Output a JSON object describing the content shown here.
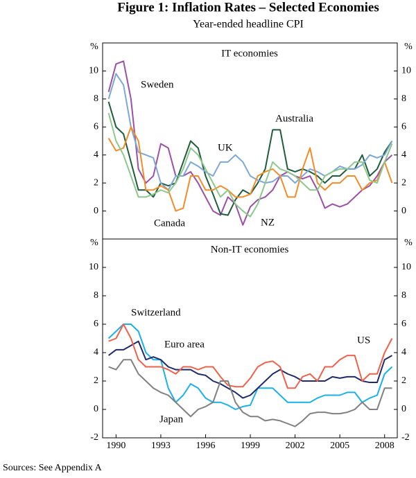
{
  "figure": {
    "title": "Figure 1: Inflation Rates – Selected Economies",
    "subtitle": "Year-ended headline CPI",
    "sources": "Sources:  See Appendix A"
  },
  "chart_data": [
    {
      "type": "line",
      "panel_title": "IT economies",
      "y_unit": "%",
      "x": [
        1989.5,
        1990,
        1990.5,
        1991,
        1991.5,
        1992,
        1992.5,
        1993,
        1993.5,
        1994,
        1994.5,
        1995,
        1995.5,
        1996,
        1996.5,
        1997,
        1997.5,
        1998,
        1998.5,
        1999,
        1999.5,
        2000,
        2000.5,
        2001,
        2001.5,
        2002,
        2002.5,
        2003,
        2003.5,
        2004,
        2004.5,
        2005,
        2005.5,
        2006,
        2006.5,
        2007,
        2007.5,
        2008,
        2008.5
      ],
      "xlim": [
        1989.1,
        2008.85
      ],
      "ylim": [
        -2,
        12
      ],
      "yticks": [
        0,
        2,
        4,
        6,
        8,
        10
      ],
      "series": [
        {
          "name": "Sweden",
          "color": "#9b4fa6",
          "values": [
            8.5,
            10.5,
            10.7,
            8,
            3,
            2,
            2.5,
            4.8,
            4.5,
            2.5,
            2.5,
            2.8,
            2,
            1,
            0,
            -0.3,
            1,
            0.5,
            -1,
            0.3,
            0.8,
            1,
            1.5,
            2.5,
            2.8,
            2.5,
            2.3,
            2.5,
            1.5,
            0.2,
            0.5,
            0.3,
            0.5,
            1,
            1.5,
            1.8,
            2.5,
            3.5,
            4
          ]
        },
        {
          "name": "Australia",
          "color": "#1e5c3a",
          "values": [
            7.8,
            6,
            5.5,
            3.5,
            1.5,
            1.5,
            1,
            2,
            1.8,
            2,
            3.5,
            5,
            4.5,
            2.5,
            1.2,
            -0.2,
            -0.3,
            0.8,
            1.5,
            1.2,
            2,
            3,
            5.8,
            5.8,
            3,
            2.8,
            3,
            2.8,
            2.5,
            2,
            2.5,
            2.5,
            3,
            3,
            4,
            2.5,
            3,
            4.2,
            5
          ]
        },
        {
          "name": "UK",
          "color": "#7ba7d6",
          "values": [
            8,
            9.8,
            9,
            6,
            4.2,
            4,
            3.8,
            2,
            1.5,
            2.5,
            2.5,
            3.5,
            3.2,
            2.8,
            2.5,
            3.5,
            3.5,
            4,
            3.5,
            2.5,
            2.2,
            2,
            2.1,
            2.5,
            2.5,
            2,
            2.5,
            3,
            2.8,
            2.5,
            2.8,
            3.2,
            3,
            3,
            3.3,
            4,
            3.8,
            4,
            5
          ]
        },
        {
          "name": "Canada",
          "color": "#f28c28",
          "values": [
            5.2,
            4.3,
            4.5,
            6,
            5,
            1.5,
            1.5,
            1.8,
            1.5,
            0,
            0.2,
            2.5,
            2.5,
            1.5,
            1.5,
            1.8,
            1.5,
            1,
            1,
            1.2,
            2.5,
            2.8,
            3,
            2.5,
            1,
            1,
            3,
            4.5,
            2,
            1.5,
            2,
            2,
            2.5,
            2.5,
            1.5,
            2,
            2.2,
            3.5,
            2
          ]
        },
        {
          "name": "NZ",
          "color": "#8cc88c",
          "values": [
            7,
            5,
            4,
            2.5,
            1,
            1,
            1.2,
            1.5,
            1.3,
            2,
            3,
            4.5,
            4,
            3,
            2,
            1,
            1.5,
            0.5,
            0,
            -0.4,
            0.5,
            2,
            3.5,
            3,
            2.8,
            2.5,
            2,
            1.5,
            1.5,
            2.5,
            2.8,
            3,
            3,
            3.5,
            3.5,
            2.2,
            2,
            3.5,
            4.8
          ]
        }
      ]
    },
    {
      "type": "line",
      "panel_title": "Non-IT economies",
      "y_unit": "%",
      "x": [
        1989.5,
        1990,
        1990.5,
        1991,
        1991.5,
        1992,
        1992.5,
        1993,
        1993.5,
        1994,
        1994.5,
        1995,
        1995.5,
        1996,
        1996.5,
        1997,
        1997.5,
        1998,
        1998.5,
        1999,
        1999.5,
        2000,
        2000.5,
        2001,
        2001.5,
        2002,
        2002.5,
        2003,
        2003.5,
        2004,
        2004.5,
        2005,
        2005.5,
        2006,
        2006.5,
        2007,
        2007.5,
        2008,
        2008.5
      ],
      "xlim": [
        1989.1,
        2008.85
      ],
      "xticks": [
        1990,
        1993,
        1996,
        1999,
        2002,
        2005,
        2008
      ],
      "ylim": [
        -2,
        12
      ],
      "yticks": [
        -2,
        0,
        2,
        4,
        6,
        8,
        10
      ],
      "series": [
        {
          "name": "Switzerland",
          "color": "#1ab0e8",
          "values": [
            5,
            5.5,
            6,
            6,
            5.5,
            4,
            3.5,
            3.5,
            1.5,
            0.5,
            1,
            1.8,
            1.5,
            0.8,
            0.5,
            0.5,
            0.3,
            0,
            0.2,
            0.3,
            1.5,
            1.5,
            1.5,
            1,
            0.5,
            0.5,
            0.5,
            0.5,
            0.8,
            1,
            1,
            1,
            1.2,
            1.2,
            0.5,
            0.8,
            1,
            2.5,
            3
          ]
        },
        {
          "name": "Euro area",
          "color": "#1f2a6b",
          "values": [
            3.8,
            4.2,
            4.2,
            4.5,
            4.8,
            3.5,
            3.7,
            3.5,
            3,
            2.8,
            2.8,
            2.8,
            2.5,
            2.4,
            2,
            1.8,
            1.5,
            1.2,
            0.8,
            1,
            1.5,
            2,
            2.5,
            2.8,
            2.5,
            2.3,
            2,
            2,
            2,
            2,
            2.3,
            2.2,
            2.3,
            2.3,
            2,
            1.9,
            1.9,
            3.5,
            3.8
          ]
        },
        {
          "name": "US",
          "color": "#f0604a",
          "values": [
            4.8,
            5,
            6,
            5,
            3.5,
            3,
            3,
            3,
            2.8,
            2.5,
            3,
            3,
            2.8,
            3,
            3,
            2.3,
            1.7,
            1.6,
            1.6,
            2.2,
            3,
            3.3,
            3.4,
            3,
            1.5,
            1.5,
            2.3,
            2.5,
            2,
            3,
            3,
            3.5,
            3.8,
            3.8,
            2,
            2.5,
            2.5,
            4,
            5
          ]
        },
        {
          "name": "Japan",
          "color": "#808080",
          "values": [
            3,
            2.8,
            3.5,
            3.5,
            2.5,
            2,
            1.5,
            1.2,
            1,
            0.5,
            0,
            -0.5,
            0,
            0.2,
            0.5,
            2,
            2,
            0.5,
            -0.2,
            -0.5,
            -0.5,
            -0.8,
            -0.7,
            -0.8,
            -1,
            -1.2,
            -0.8,
            -0.3,
            -0.2,
            -0.2,
            -0.3,
            -0.3,
            -0.2,
            0,
            0.5,
            0,
            0,
            1.5,
            1.5
          ]
        }
      ]
    }
  ]
}
